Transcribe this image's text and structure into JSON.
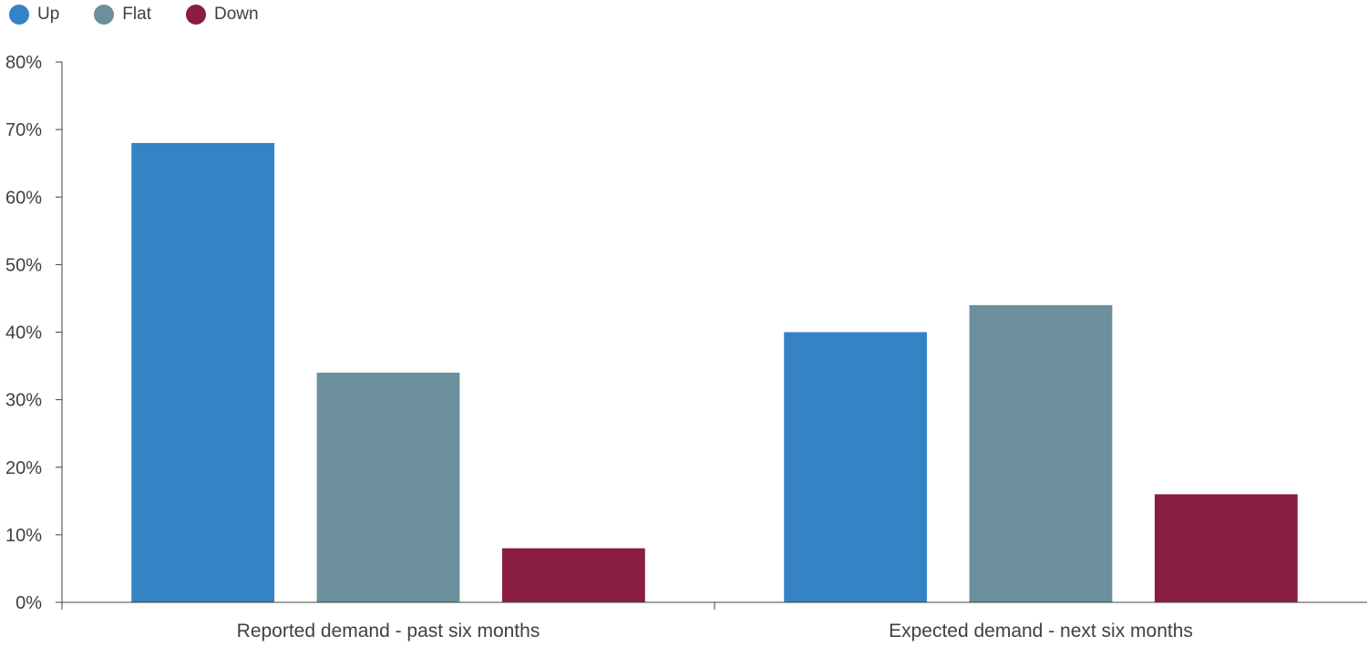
{
  "chart_data": {
    "type": "bar",
    "categories": [
      "Reported demand - past six months",
      "Expected demand - next six months"
    ],
    "series": [
      {
        "name": "Up",
        "color": "#3582c4",
        "values": [
          68,
          40
        ]
      },
      {
        "name": "Flat",
        "color": "#6c8f9d",
        "values": [
          34,
          44
        ]
      },
      {
        "name": "Down",
        "color": "#891e40",
        "values": [
          8,
          16
        ]
      }
    ],
    "y_ticks": [
      "0%",
      "10%",
      "20%",
      "30%",
      "40%",
      "50%",
      "60%",
      "70%",
      "80%"
    ],
    "ylim": [
      0,
      80
    ],
    "legend_position": "top-left",
    "grid": false
  }
}
